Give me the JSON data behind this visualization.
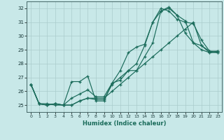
{
  "xlabel": "Humidex (Indice chaleur)",
  "background_color": "#c8e8e8",
  "grid_color": "#aacccc",
  "line_color": "#1a6b5a",
  "xlim_min": -0.5,
  "xlim_max": 23.5,
  "ylim_min": 24.5,
  "ylim_max": 32.5,
  "yticks": [
    25,
    26,
    27,
    28,
    29,
    30,
    31,
    32
  ],
  "xticks": [
    0,
    1,
    2,
    3,
    4,
    5,
    6,
    7,
    8,
    9,
    10,
    11,
    12,
    13,
    14,
    15,
    16,
    17,
    18,
    19,
    20,
    21,
    22,
    23
  ],
  "series": [
    [
      26.5,
      25.1,
      25.1,
      25.0,
      25.0,
      26.7,
      26.7,
      27.1,
      25.3,
      25.3,
      26.6,
      26.8,
      27.5,
      28.0,
      29.3,
      31.0,
      31.8,
      32.0,
      31.5,
      31.1,
      29.5,
      29.3,
      28.9,
      28.8
    ],
    [
      26.5,
      25.1,
      25.0,
      25.1,
      25.0,
      25.5,
      25.8,
      26.1,
      25.6,
      25.6,
      26.6,
      27.5,
      28.8,
      29.2,
      29.4,
      31.0,
      32.0,
      31.8,
      31.2,
      31.0,
      30.9,
      29.7,
      28.9,
      28.9
    ],
    [
      26.5,
      25.1,
      25.0,
      25.1,
      25.0,
      25.0,
      25.3,
      25.5,
      25.4,
      25.4,
      26.5,
      27.0,
      27.5,
      27.5,
      28.5,
      29.5,
      31.8,
      32.1,
      31.5,
      30.2,
      29.5,
      29.0,
      28.8,
      28.9
    ],
    [
      26.5,
      25.1,
      25.0,
      25.1,
      25.0,
      25.0,
      25.3,
      25.5,
      25.5,
      25.5,
      26.0,
      26.5,
      27.0,
      27.5,
      28.0,
      28.5,
      29.0,
      29.5,
      30.0,
      30.5,
      31.0,
      29.3,
      28.8,
      28.8
    ]
  ]
}
